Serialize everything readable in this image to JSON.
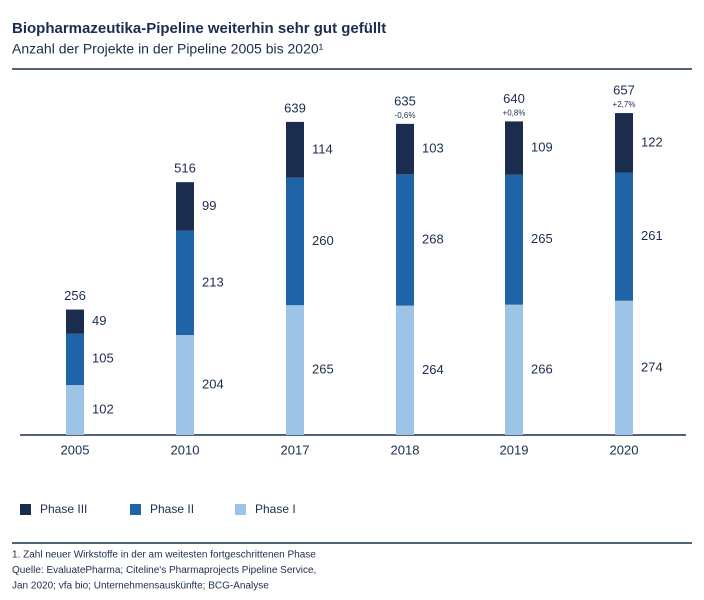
{
  "chart_data": {
    "type": "stacked_bar",
    "title": "Biopharmazeutika-Pipeline weiterhin sehr gut gefüllt",
    "subtitle": "Anzahl der Projekte in der Pipeline 2005 bis 2020¹",
    "categories": [
      "2005",
      "2010",
      "2017",
      "2018",
      "2019",
      "2020"
    ],
    "series": [
      {
        "name": "Phase III",
        "color": "#1b2d4f",
        "values": [
          49,
          99,
          114,
          103,
          109,
          122
        ]
      },
      {
        "name": "Phase II",
        "color": "#1e64a6",
        "values": [
          105,
          213,
          260,
          268,
          265,
          261
        ]
      },
      {
        "name": "Phase I",
        "color": "#9dc3e6",
        "values": [
          102,
          204,
          265,
          264,
          266,
          274
        ]
      }
    ],
    "totals": [
      256,
      516,
      639,
      635,
      640,
      657
    ],
    "changes": [
      null,
      null,
      null,
      "-0,6%",
      "+0,8%",
      "+2,7%"
    ],
    "footnotes": [
      "1. Zahl neuer Wirkstoffe in der am weitesten fortgeschrittenen Phase",
      "Quelle: EvaluatePharma; Citeline's Pharmaprojects Pipeline Service,",
      "Jan 2020; vfa bio; Unternehmensauskünfte; BCG-Analyse"
    ]
  }
}
